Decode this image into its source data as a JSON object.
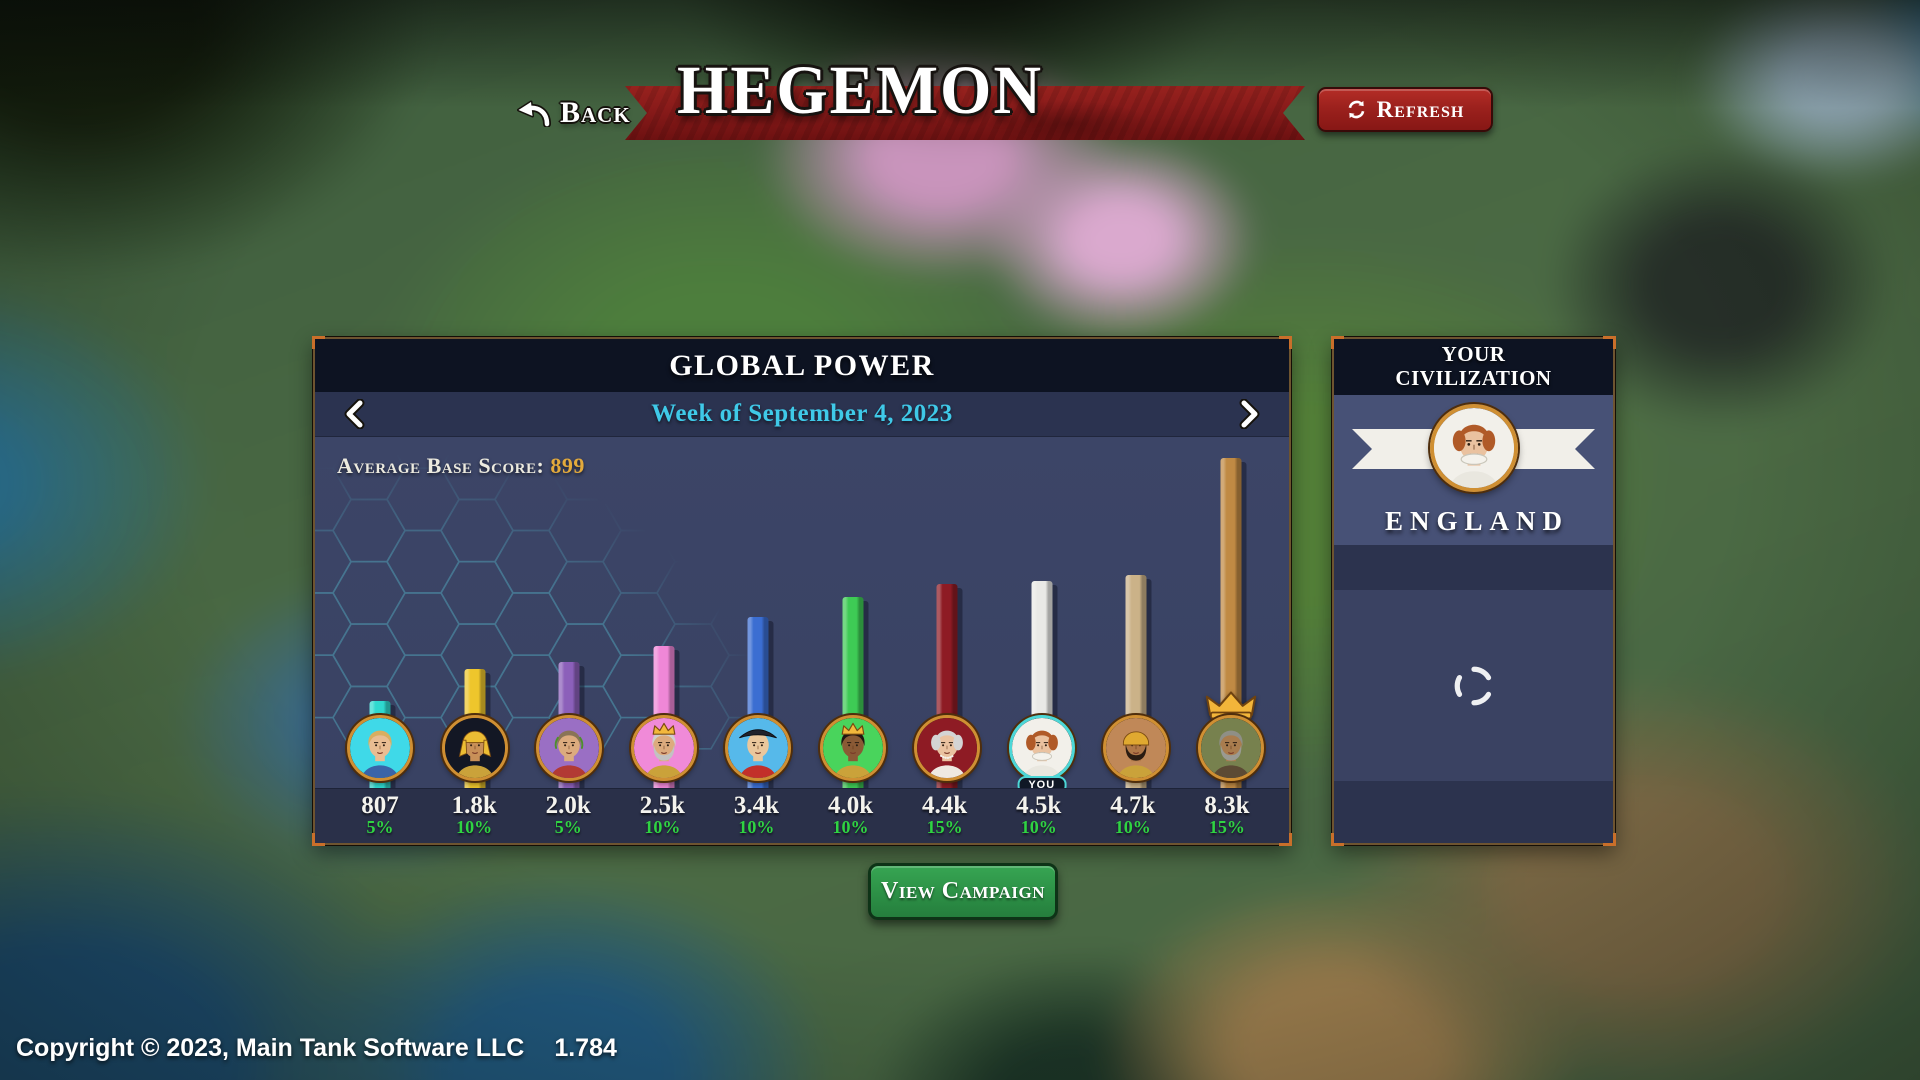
{
  "header": {
    "back_label": "Back",
    "title": "HEGEMON",
    "refresh_label": "Refresh"
  },
  "panel": {
    "title": "GLOBAL POWER",
    "week_label": "Week of September 4, 2023",
    "avg_label": "Average Base Score:",
    "avg_value": "899",
    "you_badge": "YOU"
  },
  "chart_data": {
    "type": "bar",
    "title": "GLOBAL POWER",
    "subtitle": "Week of September 4, 2023",
    "average_base_score": 899,
    "ylim": [
      0,
      8300
    ],
    "grid": false,
    "legend": false,
    "values": [
      807,
      1800,
      2000,
      2500,
      3400,
      4000,
      4400,
      4500,
      4700,
      8300
    ],
    "value_labels": [
      "807",
      "1.8k",
      "2.0k",
      "2.5k",
      "3.4k",
      "4.0k",
      "4.4k",
      "4.5k",
      "4.7k",
      "8.3k"
    ],
    "growth_labels": [
      "5%",
      "10%",
      "5%",
      "10%",
      "10%",
      "10%",
      "15%",
      "10%",
      "10%",
      "15%"
    ],
    "bar_colors": [
      "#2fd9cf",
      "#eec62c",
      "#8c60ba",
      "#ef87d7",
      "#3b6ed2",
      "#3ecb55",
      "#8e1b24",
      "#e9e9e6",
      "#cbb288",
      "#c08a44"
    ],
    "bars": [
      {
        "rank": 1,
        "score": 807,
        "score_label": "807",
        "growth_pct": "5%",
        "bar_color": "#2fd9cf",
        "is_you": false,
        "has_crown": false,
        "avatar": {
          "bg": "#3fd9e8",
          "skin": "#e9bd92",
          "hair": "#d9ae60",
          "outfit": "#3a64a8",
          "gear": []
        }
      },
      {
        "rank": 2,
        "score": 1800,
        "score_label": "1.8k",
        "growth_pct": "10%",
        "bar_color": "#eec62c",
        "is_you": false,
        "has_crown": false,
        "avatar": {
          "bg": "#131724",
          "skin": "#c89058",
          "hair": "#201612",
          "outfit": "#caa23a",
          "gear": [
            "pharaoh"
          ]
        }
      },
      {
        "rank": 3,
        "score": 2000,
        "score_label": "2.0k",
        "growth_pct": "5%",
        "bar_color": "#8c60ba",
        "is_you": false,
        "has_crown": false,
        "avatar": {
          "bg": "#9a6fc4",
          "skin": "#dcab7e",
          "hair": "#8a7456",
          "outfit": "#b23a34",
          "gear": [
            "laurel"
          ]
        }
      },
      {
        "rank": 4,
        "score": 2500,
        "score_label": "2.5k",
        "growth_pct": "10%",
        "bar_color": "#ef87d7",
        "is_you": false,
        "has_crown": false,
        "avatar": {
          "bg": "#f08ad8",
          "skin": "#dcab7e",
          "hair": "#cfcfcf",
          "beard": "#c2c2c2",
          "outfit": "#caa23a",
          "gear": [
            "crown"
          ]
        }
      },
      {
        "rank": 5,
        "score": 3400,
        "score_label": "3.4k",
        "growth_pct": "10%",
        "bar_color": "#3b6ed2",
        "is_you": false,
        "has_crown": false,
        "avatar": {
          "bg": "#56b9ea",
          "skin": "#eac79c",
          "hair": "#6b4a2e",
          "outfit": "#c2302a",
          "gear": [
            "bicorne"
          ]
        }
      },
      {
        "rank": 6,
        "score": 4000,
        "score_label": "4.0k",
        "growth_pct": "10%",
        "bar_color": "#3ecb55",
        "is_you": false,
        "has_crown": false,
        "avatar": {
          "bg": "#49d45c",
          "skin": "#8a5a35",
          "hair": "#201612",
          "outfit": "#caa23a",
          "gear": [
            "crown"
          ]
        }
      },
      {
        "rank": 7,
        "score": 4400,
        "score_label": "4.4k",
        "growth_pct": "15%",
        "bar_color": "#8e1b24",
        "is_you": false,
        "has_crown": false,
        "avatar": {
          "bg": "#8e1b24",
          "skin": "#eac2a0",
          "hair": "#d4d4d4",
          "outfit": "#efe9e1",
          "gear": [
            "bighair",
            "pearls"
          ]
        }
      },
      {
        "rank": 8,
        "score": 4500,
        "score_label": "4.5k",
        "growth_pct": "10%",
        "bar_color": "#e9e9e6",
        "is_you": true,
        "has_crown": false,
        "avatar": {
          "bg": "#f2f0ea",
          "skin": "#eac2a0",
          "hair": "#b05a28",
          "outfit": "#e9e7df",
          "gear": [
            "bighair",
            "ruff"
          ],
          "ring": "#4cd7d7"
        }
      },
      {
        "rank": 9,
        "score": 4700,
        "score_label": "4.7k",
        "growth_pct": "10%",
        "bar_color": "#cbb288",
        "is_you": false,
        "has_crown": false,
        "avatar": {
          "bg": "#c08858",
          "skin": "#b07848",
          "hair": "#2a1c12",
          "beard": "#2a1c12",
          "outfit": "#caa23a",
          "gear": [
            "helmet"
          ]
        }
      },
      {
        "rank": 10,
        "score": 8300,
        "score_label": "8.3k",
        "growth_pct": "15%",
        "bar_color": "#c08a44",
        "is_you": false,
        "has_crown": true,
        "avatar": {
          "bg": "#77814e",
          "skin": "#a97c4e",
          "hair": "#8f8f86",
          "beard": "#9a9a92",
          "outfit": "#5c4a34",
          "gear": []
        }
      }
    ]
  },
  "your_civilization": {
    "header": "YOUR CIVILIZATION",
    "nation": "ENGLAND",
    "status_icon": "loading-spinner"
  },
  "footer": {
    "view_campaign": "View Campaign",
    "copyright": "Copyright © 2023, Main Tank Software LLC",
    "version": "1.784"
  },
  "colors": {
    "accent_gold": "#e3aa3c",
    "week_cyan": "#3fc9e8",
    "growth_green": "#2fd342",
    "ribbon_red": "#8a1b1a",
    "refresh_red": "#9c211d",
    "campaign_green": "#2e9448",
    "panel_border": "#6e5430",
    "corner_accent": "#c96f2a",
    "you_ring_teal": "#4cd7d7"
  }
}
